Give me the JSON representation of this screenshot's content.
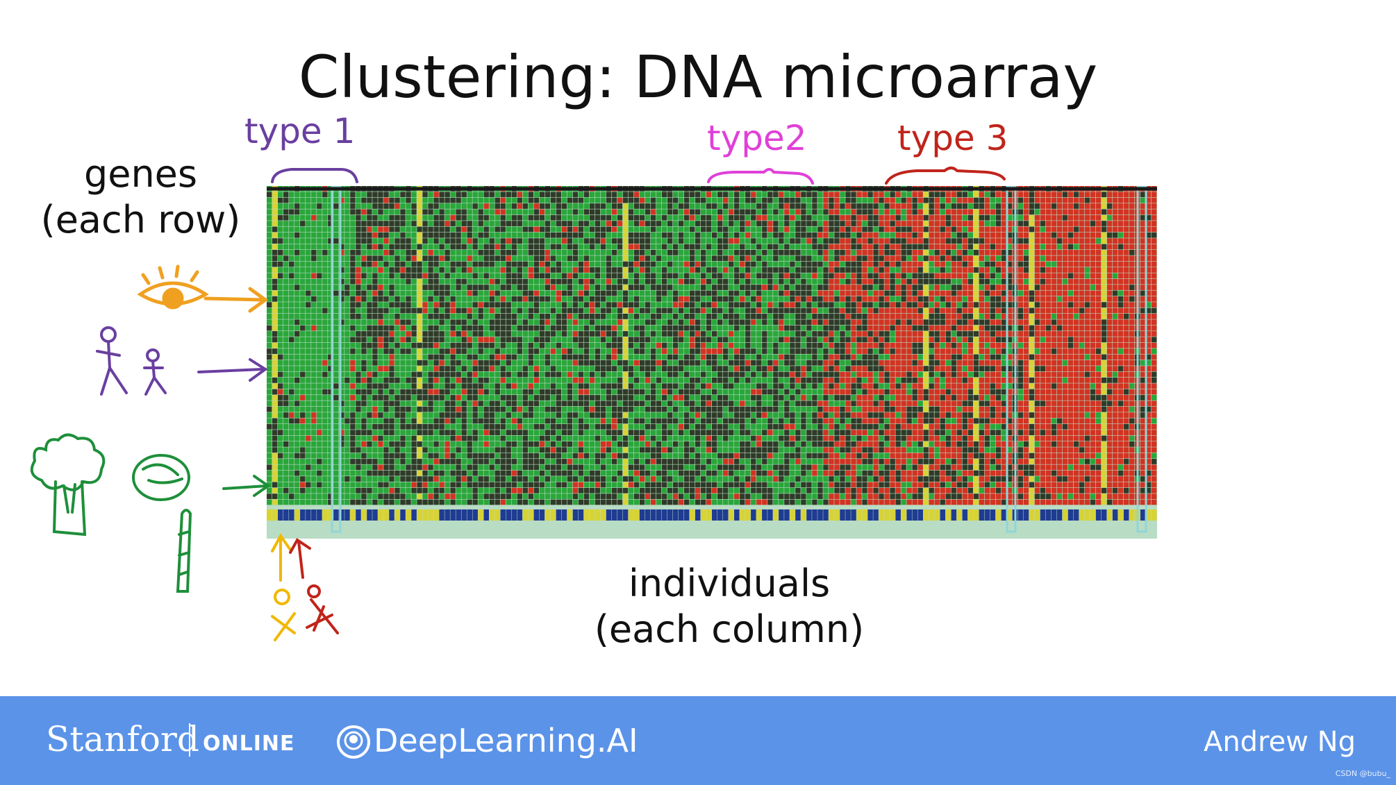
{
  "slide": {
    "title": "Clustering: DNA microarray",
    "genes_line1": "genes",
    "genes_line2": "(each row)",
    "individuals_line1": "individuals",
    "individuals_line2": "(each column)"
  },
  "annotations": {
    "type1": "type 1",
    "type2": "type2",
    "type3": "type 3"
  },
  "footer": {
    "stanford": "Stanford",
    "online": "ONLINE",
    "deeplearning": "DeepLearning.AI",
    "author": "Andrew Ng",
    "watermark": "CSDN @bubu_"
  },
  "colors": {
    "green": "#2aa63a",
    "red": "#d23322",
    "dark": "#2f3a28",
    "yellow": "#d8d335",
    "navy": "#1f3c92",
    "footer_blue": "#5b93e8",
    "type1_purple": "#6a3fa0",
    "type2_magenta": "#e040d8",
    "type3_red": "#c0241b",
    "eye_orange": "#f0a020",
    "plant_green": "#1e8f3a"
  },
  "icons": [
    "eye-icon",
    "stick-figures-icon",
    "broccoli-icon",
    "cabbage-icon",
    "asparagus-icon",
    "person-yellow-icon",
    "person-red-icon",
    "deeplearning-logo-icon"
  ]
}
